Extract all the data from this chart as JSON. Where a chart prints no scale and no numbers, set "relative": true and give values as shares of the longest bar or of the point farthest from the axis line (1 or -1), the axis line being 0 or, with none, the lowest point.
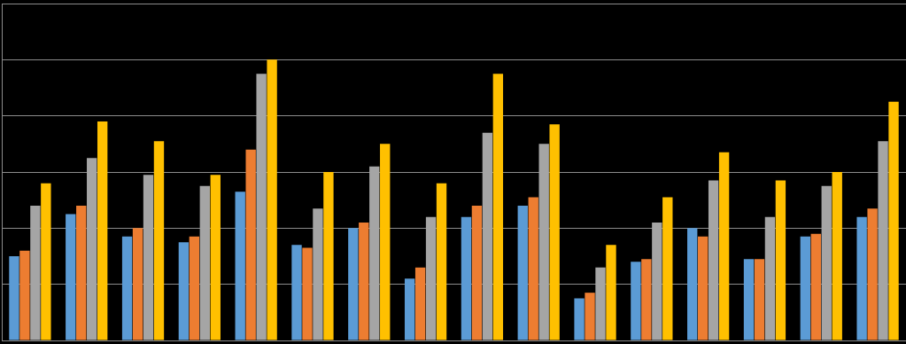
{
  "chart_data": {
    "type": "bar",
    "relative": true,
    "grid": "y",
    "categories": [
      null,
      null,
      null,
      null,
      null,
      null,
      null,
      null,
      null,
      null,
      null,
      null,
      null,
      null,
      null,
      null
    ],
    "series": [
      {
        "color": "#5b9bd5",
        "values": [
          0.3,
          0.45,
          0.37,
          0.35,
          0.53,
          0.34,
          0.4,
          0.22,
          0.44,
          0.48,
          0.15,
          0.28,
          0.4,
          0.29,
          0.37,
          0.44
        ]
      },
      {
        "color": "#ed7d31",
        "values": [
          0.32,
          0.48,
          0.4,
          0.37,
          0.68,
          0.33,
          0.42,
          0.26,
          0.48,
          0.51,
          0.17,
          0.29,
          0.37,
          0.29,
          0.38,
          0.47
        ]
      },
      {
        "color": "#a5a5a5",
        "values": [
          0.48,
          0.65,
          0.59,
          0.55,
          0.95,
          0.47,
          0.62,
          0.44,
          0.74,
          0.7,
          0.26,
          0.42,
          0.57,
          0.44,
          0.55,
          0.71
        ]
      },
      {
        "color": "#ffc000",
        "values": [
          0.56,
          0.78,
          0.71,
          0.59,
          1,
          0.6,
          0.7,
          0.56,
          0.95,
          0.77,
          0.34,
          0.51,
          0.67,
          0.57,
          0.6,
          0.85
        ]
      }
    ]
  }
}
